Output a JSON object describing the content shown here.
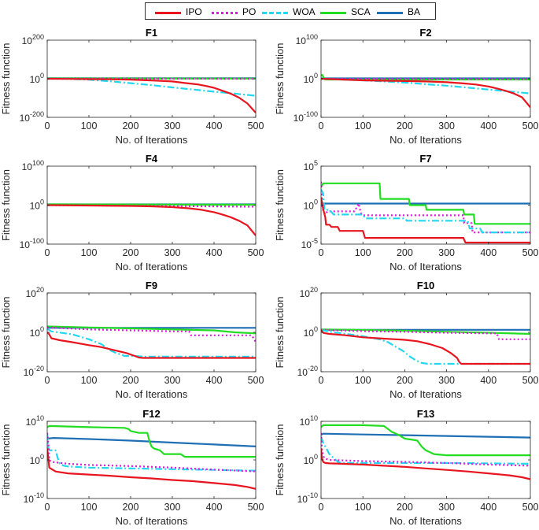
{
  "legend": [
    {
      "name": "IPO",
      "color": "#e8151f",
      "dash": "solid"
    },
    {
      "name": "PO",
      "color": "#e018e0",
      "dash": "dot"
    },
    {
      "name": "WOA",
      "color": "#22d7f0",
      "dash": "dashdot"
    },
    {
      "name": "SCA",
      "color": "#22dd22",
      "dash": "solid"
    },
    {
      "name": "BA",
      "color": "#1f6fb5",
      "dash": "solid"
    }
  ],
  "chart_data": [
    {
      "type": "line",
      "title": "F1",
      "xlabel": "No. of Iterations",
      "ylabel": "Fitness function",
      "xlim": [
        0,
        500
      ],
      "xticks": [
        0,
        100,
        200,
        300,
        400,
        500
      ],
      "ylim_exp": [
        -200,
        200
      ],
      "yticks_exp": [
        -200,
        0,
        200
      ],
      "series": [
        {
          "name": "BA",
          "x": [
            0,
            500
          ],
          "log10": [
            3,
            3
          ]
        },
        {
          "name": "SCA",
          "x": [
            0,
            500
          ],
          "log10": [
            2,
            1
          ]
        },
        {
          "name": "PO",
          "x": [
            0,
            500
          ],
          "log10": [
            1,
            0
          ]
        },
        {
          "name": "WOA",
          "x": [
            0,
            50,
            100,
            150,
            200,
            250,
            300,
            350,
            400,
            450,
            500
          ],
          "log10": [
            0,
            -1,
            -5,
            -13,
            -23,
            -33,
            -45,
            -56,
            -67,
            -77,
            -88
          ]
        },
        {
          "name": "IPO",
          "x": [
            0,
            50,
            100,
            150,
            200,
            250,
            300,
            330,
            360,
            380,
            400,
            420,
            440,
            460,
            480,
            500
          ],
          "log10": [
            0,
            -1,
            -2,
            -3,
            -5,
            -9,
            -14,
            -22,
            -29,
            -37,
            -47,
            -62,
            -77,
            -98,
            -128,
            -176
          ]
        }
      ]
    },
    {
      "type": "line",
      "title": "F2",
      "xlabel": "No. of Iterations",
      "ylabel": "Fitness function",
      "xlim": [
        0,
        500
      ],
      "xticks": [
        0,
        100,
        200,
        300,
        400,
        500
      ],
      "ylim_exp": [
        -100,
        100
      ],
      "yticks_exp": [
        -100,
        0,
        100
      ],
      "series": [
        {
          "name": "BA",
          "x": [
            0,
            500
          ],
          "log10": [
            1,
            1
          ]
        },
        {
          "name": "SCA",
          "x": [
            0,
            3,
            6,
            10,
            500
          ],
          "log10": [
            8,
            10,
            3,
            -2,
            -2
          ]
        },
        {
          "name": "PO",
          "x": [
            0,
            500
          ],
          "log10": [
            0,
            -1
          ]
        },
        {
          "name": "WOA",
          "x": [
            0,
            50,
            100,
            150,
            200,
            250,
            300,
            350,
            400,
            450,
            500
          ],
          "log10": [
            0,
            -2,
            -4,
            -7,
            -10,
            -14,
            -18,
            -23,
            -28,
            -33,
            -38
          ]
        },
        {
          "name": "IPO",
          "x": [
            0,
            50,
            100,
            150,
            200,
            250,
            300,
            340,
            370,
            400,
            420,
            440,
            460,
            480,
            500
          ],
          "log10": [
            0,
            -2,
            -4,
            -5,
            -6,
            -7,
            -9,
            -12,
            -15,
            -20,
            -25,
            -31,
            -38,
            -48,
            -74
          ]
        }
      ]
    },
    {
      "type": "line",
      "title": "F4",
      "xlabel": "No. of Iterations",
      "ylabel": "Fitness function",
      "xlim": [
        0,
        500
      ],
      "xticks": [
        0,
        100,
        200,
        300,
        400,
        500
      ],
      "ylim_exp": [
        -100,
        100
      ],
      "yticks_exp": [
        -100,
        0,
        100
      ],
      "series": [
        {
          "name": "BA",
          "x": [
            0,
            500
          ],
          "log10": [
            2,
            2
          ]
        },
        {
          "name": "SCA",
          "x": [
            0,
            500
          ],
          "log10": [
            2,
            1
          ]
        },
        {
          "name": "PO",
          "x": [
            0,
            500
          ],
          "log10": [
            0,
            -4
          ]
        },
        {
          "name": "IPO",
          "x": [
            0,
            100,
            200,
            250,
            300,
            340,
            370,
            400,
            420,
            440,
            460,
            480,
            500
          ],
          "log10": [
            0,
            -1,
            -2,
            -3,
            -5,
            -8,
            -12,
            -18,
            -24,
            -31,
            -40,
            -52,
            -78
          ]
        }
      ]
    },
    {
      "type": "line",
      "title": "F7",
      "xlabel": "No. of Iterations",
      "ylabel": "Fitness function",
      "xlim": [
        0,
        500
      ],
      "xticks": [
        0,
        100,
        200,
        300,
        400,
        500
      ],
      "ylim_exp": [
        -5,
        5
      ],
      "yticks_exp": [
        -5,
        0,
        5
      ],
      "series": [
        {
          "name": "BA",
          "x": [
            0,
            500
          ],
          "log10": [
            0.2,
            0.2
          ]
        },
        {
          "name": "SCA",
          "x": [
            0,
            5,
            140,
            142,
            210,
            212,
            250,
            252,
            340,
            342,
            365,
            367,
            500
          ],
          "log10": [
            2.3,
            2.8,
            2.8,
            0.8,
            0.8,
            0,
            0,
            -0.6,
            -0.6,
            -1.2,
            -1.2,
            -2.4,
            -2.4
          ]
        },
        {
          "name": "PO",
          "x": [
            0,
            3,
            6,
            10,
            15,
            80,
            90,
            95,
            100,
            340,
            342,
            360,
            362,
            500
          ],
          "log10": [
            3,
            -0.3,
            -0.8,
            -1.2,
            -0.8,
            -0.8,
            0.2,
            -1,
            -1.3,
            -1.3,
            -2.3,
            -2.3,
            -3.5,
            -3.5
          ]
        },
        {
          "name": "WOA",
          "x": [
            0,
            5,
            8,
            20,
            30,
            100,
            105,
            200,
            205,
            350,
            355,
            380,
            385,
            500
          ],
          "log10": [
            2,
            1.5,
            -0.6,
            -0.6,
            -1.2,
            -1.2,
            -1.7,
            -1.7,
            -2,
            -2,
            -3,
            -3,
            -3.5,
            -3.5
          ]
        },
        {
          "name": "IPO",
          "x": [
            0,
            5,
            10,
            12,
            20,
            25,
            40,
            45,
            60,
            100,
            105,
            340,
            345,
            500
          ],
          "log10": [
            1,
            -0.5,
            -1.5,
            -2.5,
            -2.5,
            -2.8,
            -2.8,
            -3.3,
            -3.3,
            -3.3,
            -4.2,
            -4.2,
            -4.8,
            -4.8
          ]
        }
      ]
    },
    {
      "type": "line",
      "title": "F9",
      "xlabel": "No. of Iterations",
      "ylabel": "Fitness function",
      "xlim": [
        0,
        500
      ],
      "xticks": [
        0,
        100,
        200,
        300,
        400,
        500
      ],
      "ylim_exp": [
        -20,
        20
      ],
      "yticks_exp": [
        -20,
        0,
        20
      ],
      "series": [
        {
          "name": "BA",
          "x": [
            0,
            500
          ],
          "log10": [
            2.3,
            2.3
          ]
        },
        {
          "name": "SCA",
          "x": [
            0,
            100,
            200,
            300,
            400,
            450,
            500
          ],
          "log10": [
            3,
            2.5,
            2,
            1.5,
            1,
            0,
            -0.5
          ]
        },
        {
          "name": "PO",
          "x": [
            0,
            100,
            200,
            300,
            340,
            345,
            490,
            495,
            500
          ],
          "log10": [
            2.5,
            1.5,
            1,
            0.5,
            0.5,
            -1.5,
            -1.5,
            -3,
            -5
          ]
        },
        {
          "name": "WOA",
          "x": [
            0,
            10,
            60,
            100,
            130,
            150,
            165,
            180,
            185,
            200,
            210,
            230,
            500
          ],
          "log10": [
            1.8,
            0.5,
            -1,
            -3.5,
            -6,
            -9,
            -10.5,
            -11.5,
            -12,
            -12,
            -12,
            -12.3,
            -12.3
          ]
        },
        {
          "name": "IPO",
          "x": [
            0,
            5,
            10,
            30,
            60,
            100,
            130,
            150,
            170,
            190,
            210,
            220,
            230,
            500
          ],
          "log10": [
            0,
            -1,
            -3,
            -4,
            -5,
            -6.5,
            -7.5,
            -8.5,
            -9.5,
            -10.5,
            -12,
            -12.8,
            -13,
            -13
          ]
        }
      ]
    },
    {
      "type": "line",
      "title": "F10",
      "xlabel": "No. of Iterations",
      "ylabel": "Fitness function",
      "xlim": [
        0,
        500
      ],
      "xticks": [
        0,
        100,
        200,
        300,
        400,
        500
      ],
      "ylim_exp": [
        -20,
        20
      ],
      "yticks_exp": [
        -20,
        0,
        20
      ],
      "series": [
        {
          "name": "BA",
          "x": [
            0,
            500
          ],
          "log10": [
            1.3,
            1.3
          ]
        },
        {
          "name": "SCA",
          "x": [
            0,
            100,
            200,
            300,
            400,
            500
          ],
          "log10": [
            1.5,
            1.2,
            0.8,
            0.3,
            -0.2,
            -0.8
          ]
        },
        {
          "name": "PO",
          "x": [
            0,
            100,
            200,
            300,
            400,
            420,
            425,
            500
          ],
          "log10": [
            1.3,
            0.6,
            0.3,
            -0.2,
            -0.5,
            -0.5,
            -3.5,
            -3.5
          ]
        },
        {
          "name": "WOA",
          "x": [
            0,
            20,
            60,
            100,
            140,
            160,
            180,
            200,
            210,
            225,
            240,
            255,
            500
          ],
          "log10": [
            1.3,
            0.3,
            -0.8,
            -2,
            -3.5,
            -5,
            -7.5,
            -10,
            -12,
            -14,
            -15.5,
            -16,
            -16
          ]
        },
        {
          "name": "IPO",
          "x": [
            0,
            3,
            6,
            20,
            60,
            100,
            150,
            200,
            230,
            260,
            290,
            310,
            325,
            330,
            335,
            500
          ],
          "log10": [
            1.5,
            0.3,
            -0.3,
            -0.8,
            -1.5,
            -2.5,
            -3.2,
            -3.8,
            -4.5,
            -6,
            -8,
            -10.5,
            -13,
            -15,
            -16,
            -16
          ]
        }
      ]
    },
    {
      "type": "line",
      "title": "F12",
      "xlabel": "No. of Iterations",
      "ylabel": "Fitness function",
      "xlim": [
        0,
        500
      ],
      "xticks": [
        0,
        100,
        200,
        300,
        400,
        500
      ],
      "ylim_exp": [
        -10,
        10
      ],
      "yticks_exp": [
        -10,
        0,
        10
      ],
      "series": [
        {
          "name": "BA",
          "x": [
            0,
            15,
            100,
            200,
            300,
            400,
            500
          ],
          "log10": [
            5.5,
            5.7,
            5.4,
            5,
            4.5,
            4,
            3.5
          ]
        },
        {
          "name": "SCA",
          "x": [
            0,
            5,
            100,
            185,
            195,
            200,
            220,
            240,
            245,
            250,
            255,
            270,
            280,
            320,
            330,
            500
          ],
          "log10": [
            8.5,
            8.8,
            8.5,
            8.3,
            8,
            7.5,
            7,
            7,
            5,
            3.5,
            3,
            2.5,
            1.5,
            1.5,
            0.8,
            0.8
          ]
        },
        {
          "name": "WOA",
          "x": [
            0,
            3,
            6,
            20,
            25,
            30,
            40,
            50,
            100,
            200,
            300,
            400,
            500
          ],
          "log10": [
            7,
            3,
            2.5,
            2.5,
            0.5,
            -1,
            -1.5,
            -1.7,
            -2,
            -2.2,
            -2.4,
            -2.6,
            -2.8
          ]
        },
        {
          "name": "PO",
          "x": [
            0,
            3,
            5,
            10,
            50,
            100,
            200,
            300,
            400,
            500
          ],
          "log10": [
            7,
            4,
            0,
            -0.5,
            -1,
            -1.3,
            -1.6,
            -2,
            -2.5,
            -3
          ]
        },
        {
          "name": "IPO",
          "x": [
            0,
            2,
            5,
            20,
            50,
            100,
            150,
            200,
            250,
            300,
            350,
            400,
            450,
            480,
            500
          ],
          "log10": [
            3,
            1,
            -2,
            -3,
            -3.5,
            -3.8,
            -4.1,
            -4.5,
            -4.8,
            -5.2,
            -5.5,
            -6,
            -6.5,
            -7,
            -7.5
          ]
        }
      ]
    },
    {
      "type": "line",
      "title": "F13",
      "xlabel": "No. of Iterations",
      "ylabel": "Fitness function",
      "xlim": [
        0,
        500
      ],
      "xticks": [
        0,
        100,
        200,
        300,
        400,
        500
      ],
      "ylim_exp": [
        -10,
        10
      ],
      "yticks_exp": [
        -10,
        0,
        10
      ],
      "series": [
        {
          "name": "BA",
          "x": [
            0,
            5,
            100,
            200,
            300,
            400,
            500
          ],
          "log10": [
            6.5,
            6.8,
            6.6,
            6.4,
            6.2,
            6,
            5.8
          ]
        },
        {
          "name": "SCA",
          "x": [
            0,
            5,
            100,
            150,
            160,
            170,
            175,
            185,
            200,
            220,
            230,
            240,
            250,
            270,
            300,
            500
          ],
          "log10": [
            8.5,
            9,
            9,
            8.8,
            8,
            7.2,
            7,
            6.5,
            5.5,
            5.2,
            5,
            3.5,
            2.5,
            1.5,
            1.2,
            1.2
          ]
        },
        {
          "name": "WOA",
          "x": [
            0,
            5,
            10,
            15,
            20,
            30,
            40,
            50,
            100,
            200,
            300,
            400,
            500
          ],
          "log10": [
            6,
            4.5,
            3.5,
            2.5,
            1.5,
            0.5,
            -0.5,
            -0.8,
            -0.8,
            -0.8,
            -0.8,
            -0.9,
            -1
          ]
        },
        {
          "name": "PO",
          "x": [
            0,
            2,
            5,
            10,
            20,
            100,
            200,
            300,
            400,
            500
          ],
          "log10": [
            7,
            3,
            1,
            0.3,
            0,
            -0.3,
            -0.5,
            -0.8,
            -1.2,
            -1.5
          ]
        },
        {
          "name": "IPO",
          "x": [
            0,
            2,
            5,
            10,
            20,
            50,
            100,
            150,
            200,
            250,
            300,
            350,
            400,
            450,
            480,
            500
          ],
          "log10": [
            3,
            0.5,
            -0.5,
            -0.8,
            -0.9,
            -1,
            -1.2,
            -1.5,
            -1.8,
            -2.2,
            -2.6,
            -3,
            -3.5,
            -4,
            -4.5,
            -5
          ]
        }
      ]
    }
  ]
}
